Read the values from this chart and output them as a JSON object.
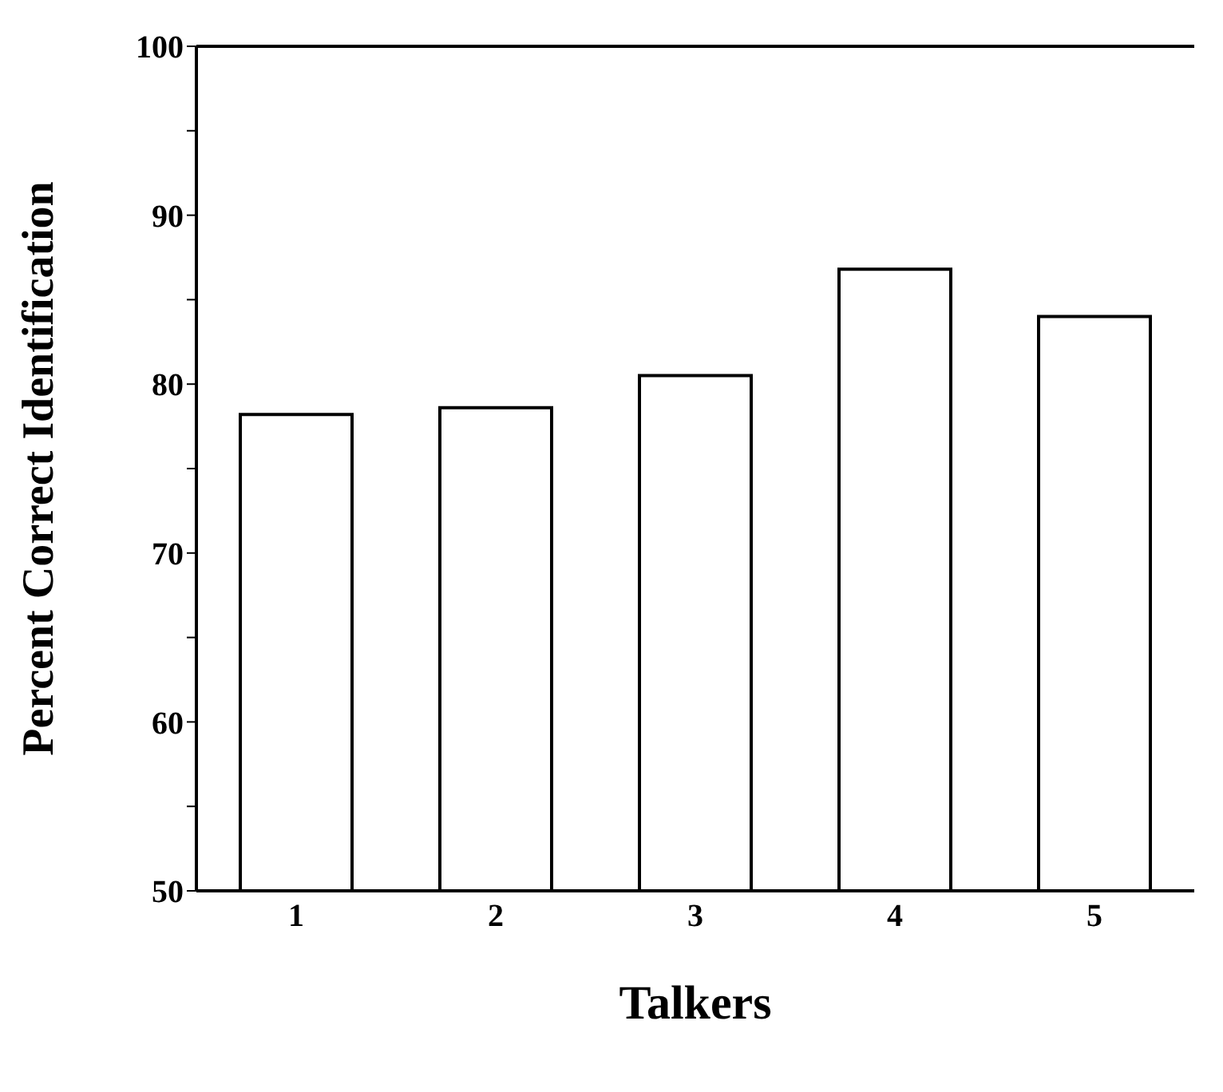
{
  "chart_data": {
    "type": "bar",
    "xlabel": "Talkers",
    "ylabel": "Percent Correct Identification",
    "categories": [
      "1",
      "2",
      "3",
      "4",
      "5"
    ],
    "values": [
      78.2,
      78.6,
      80.5,
      86.8,
      84.0
    ],
    "color": "#ffffff",
    "ylim": [
      50,
      100
    ],
    "yticks": [
      50,
      {
        "value": 55,
        "label": null
      },
      60,
      {
        "value": 65,
        "label": null
      },
      70,
      {
        "value": 75,
        "label": null
      },
      80,
      {
        "value": 85,
        "label": null
      },
      90,
      {
        "value": 95,
        "label": null
      },
      100
    ],
    "grid": false,
    "legend": false
  }
}
